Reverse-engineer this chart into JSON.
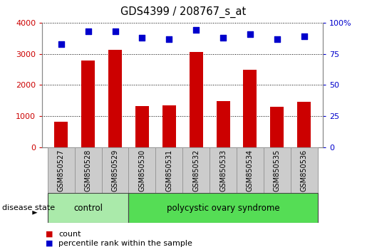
{
  "title": "GDS4399 / 208767_s_at",
  "samples": [
    "GSM850527",
    "GSM850528",
    "GSM850529",
    "GSM850530",
    "GSM850531",
    "GSM850532",
    "GSM850533",
    "GSM850534",
    "GSM850535",
    "GSM850536"
  ],
  "counts": [
    830,
    2780,
    3130,
    1320,
    1360,
    3050,
    1490,
    2480,
    1310,
    1470
  ],
  "percentiles": [
    83,
    93,
    93,
    88,
    87,
    94,
    88,
    91,
    87,
    89
  ],
  "bar_color": "#cc0000",
  "dot_color": "#0000cc",
  "ylim_left": [
    0,
    4000
  ],
  "ylim_right": [
    0,
    100
  ],
  "yticks_left": [
    0,
    1000,
    2000,
    3000,
    4000
  ],
  "yticks_right": [
    0,
    25,
    50,
    75,
    100
  ],
  "ytick_right_labels": [
    "0",
    "25",
    "50",
    "75",
    "100%"
  ],
  "groups": [
    {
      "label": "control",
      "start": 0,
      "end": 3,
      "color": "#aaeaaa"
    },
    {
      "label": "polycystic ovary syndrome",
      "start": 3,
      "end": 10,
      "color": "#55dd55"
    }
  ],
  "disease_state_label": "disease state",
  "legend_items": [
    {
      "color": "#cc0000",
      "label": "count"
    },
    {
      "color": "#0000cc",
      "label": "percentile rank within the sample"
    }
  ],
  "gray_color": "#cccccc",
  "border_color": "#999999",
  "grid_linestyle": "dotted",
  "bar_width": 0.5
}
